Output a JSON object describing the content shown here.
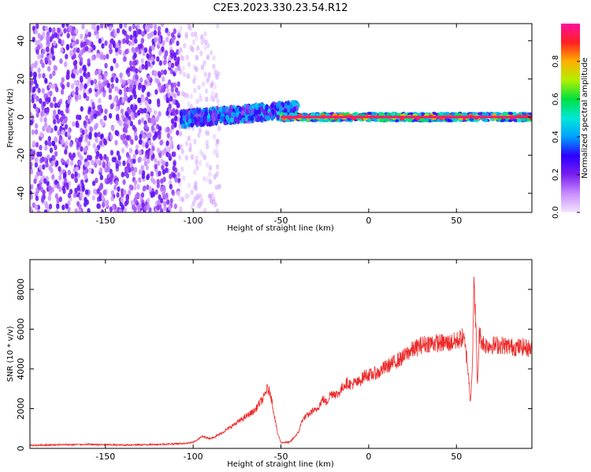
{
  "title": "C2E3.2023.330.23.54.R12",
  "colors": {
    "snr_line": "#ee2a2a",
    "frame": "#000000",
    "background": "#ffffff"
  },
  "chart_data": [
    {
      "type": "heatmap",
      "xlabel": "Height of straight line (km)",
      "ylabel": "Frequency (Hz)",
      "xlim": [
        -193,
        93
      ],
      "ylim": [
        -50,
        49
      ],
      "x_ticks": [
        {
          "value": -150,
          "label": "-150"
        },
        {
          "value": -100,
          "label": "-100"
        },
        {
          "value": -50,
          "label": "-50"
        },
        {
          "value": 0,
          "label": "0"
        },
        {
          "value": 50,
          "label": "50"
        }
      ],
      "y_ticks": [
        {
          "value": -40,
          "label": "-40"
        },
        {
          "value": -20,
          "label": "-20"
        },
        {
          "value": 0,
          "label": "0"
        },
        {
          "value": 20,
          "label": "20"
        },
        {
          "value": 40,
          "label": "40"
        }
      ],
      "grid": false,
      "description_regions": [
        {
          "x_range": [
            -193,
            -108
          ],
          "freq_range": [
            -50,
            49
          ],
          "amplitude": [
            0.05,
            0.25
          ],
          "pattern": "dense speckle"
        },
        {
          "x_range": [
            -108,
            -85
          ],
          "freq_range": [
            -50,
            49
          ],
          "amplitude": [
            0.02,
            0.1
          ],
          "pattern": "sparse speckle"
        },
        {
          "x_range": [
            -107,
            -40
          ],
          "freq_range": [
            -4,
            6
          ],
          "amplitude": [
            0.15,
            0.5
          ],
          "pattern": "band"
        },
        {
          "x_range": [
            -50,
            93
          ],
          "freq_range": [
            -2,
            2
          ],
          "amplitude": [
            0.4,
            1.0
          ],
          "pattern": "narrow line"
        }
      ],
      "colorbar": {
        "label": "Normalized spectral amplitude",
        "range": [
          0,
          1
        ],
        "ticks": [
          {
            "value": 0.0,
            "label": "0.0"
          },
          {
            "value": 0.2,
            "label": "0.2"
          },
          {
            "value": 0.4,
            "label": "0.4"
          },
          {
            "value": 0.6,
            "label": "0.6"
          },
          {
            "value": 0.8,
            "label": "0.8"
          }
        ],
        "colormap": [
          "#f2e6ff",
          "#c88cff",
          "#7a1ff0",
          "#2a00ff",
          "#00a0ff",
          "#00e8d8",
          "#00e040",
          "#b0f000",
          "#ffb000",
          "#ff2020",
          "#ff10a0"
        ]
      }
    },
    {
      "type": "line",
      "xlabel": "Height of straight line (km)",
      "ylabel": "SNR (10 * v/v)",
      "xlim": [
        -193,
        93
      ],
      "ylim": [
        0,
        9500
      ],
      "x_ticks": [
        {
          "value": -150,
          "label": "-150"
        },
        {
          "value": -100,
          "label": "-100"
        },
        {
          "value": -50,
          "label": "-50"
        },
        {
          "value": 0,
          "label": "0"
        },
        {
          "value": 50,
          "label": "50"
        }
      ],
      "y_ticks": [
        {
          "value": 0,
          "label": "0"
        },
        {
          "value": 2000,
          "label": "2000"
        },
        {
          "value": 4000,
          "label": "4000"
        },
        {
          "value": 6000,
          "label": "6000"
        },
        {
          "value": 8000,
          "label": "8000"
        }
      ],
      "grid": false,
      "series": [
        {
          "x": [
            -193,
            -180,
            -160,
            -140,
            -120,
            -105,
            -100,
            -95,
            -90,
            -85,
            -80,
            -75,
            -70,
            -65,
            -62,
            -60,
            -58,
            -56,
            -54,
            -52,
            -50,
            -45,
            -42,
            -40,
            -38,
            -36,
            -34,
            -32,
            -30,
            -28,
            -26,
            -24,
            -22,
            -20,
            -18,
            -16,
            -14,
            -12,
            -10,
            -8,
            -6,
            -4,
            -2,
            0,
            2,
            4,
            6,
            8,
            10,
            12,
            14,
            16,
            18,
            20,
            22,
            24,
            26,
            28,
            30,
            34,
            38,
            42,
            46,
            50,
            52,
            54,
            56,
            57,
            58,
            59,
            60,
            61,
            62,
            63,
            64,
            66,
            70,
            76,
            82,
            88,
            93
          ],
          "y": [
            150,
            180,
            200,
            170,
            200,
            250,
            300,
            600,
            500,
            700,
            1000,
            1300,
            1600,
            1900,
            2300,
            2500,
            3000,
            2800,
            1800,
            800,
            300,
            300,
            600,
            800,
            1400,
            1600,
            1700,
            1900,
            1900,
            2200,
            2500,
            2300,
            2700,
            2800,
            2700,
            2900,
            3200,
            3300,
            3200,
            3300,
            3300,
            3500,
            3700,
            3700,
            3700,
            3800,
            3800,
            4000,
            4100,
            4200,
            4300,
            4400,
            4500,
            4600,
            4800,
            4900,
            5000,
            5100,
            5200,
            5300,
            5300,
            5300,
            5300,
            5400,
            5500,
            5600,
            4500,
            3500,
            2400,
            4000,
            8200,
            6500,
            3000,
            5800,
            5500,
            5200,
            5200,
            5200,
            5100,
            5100,
            5000
          ]
        }
      ]
    }
  ]
}
